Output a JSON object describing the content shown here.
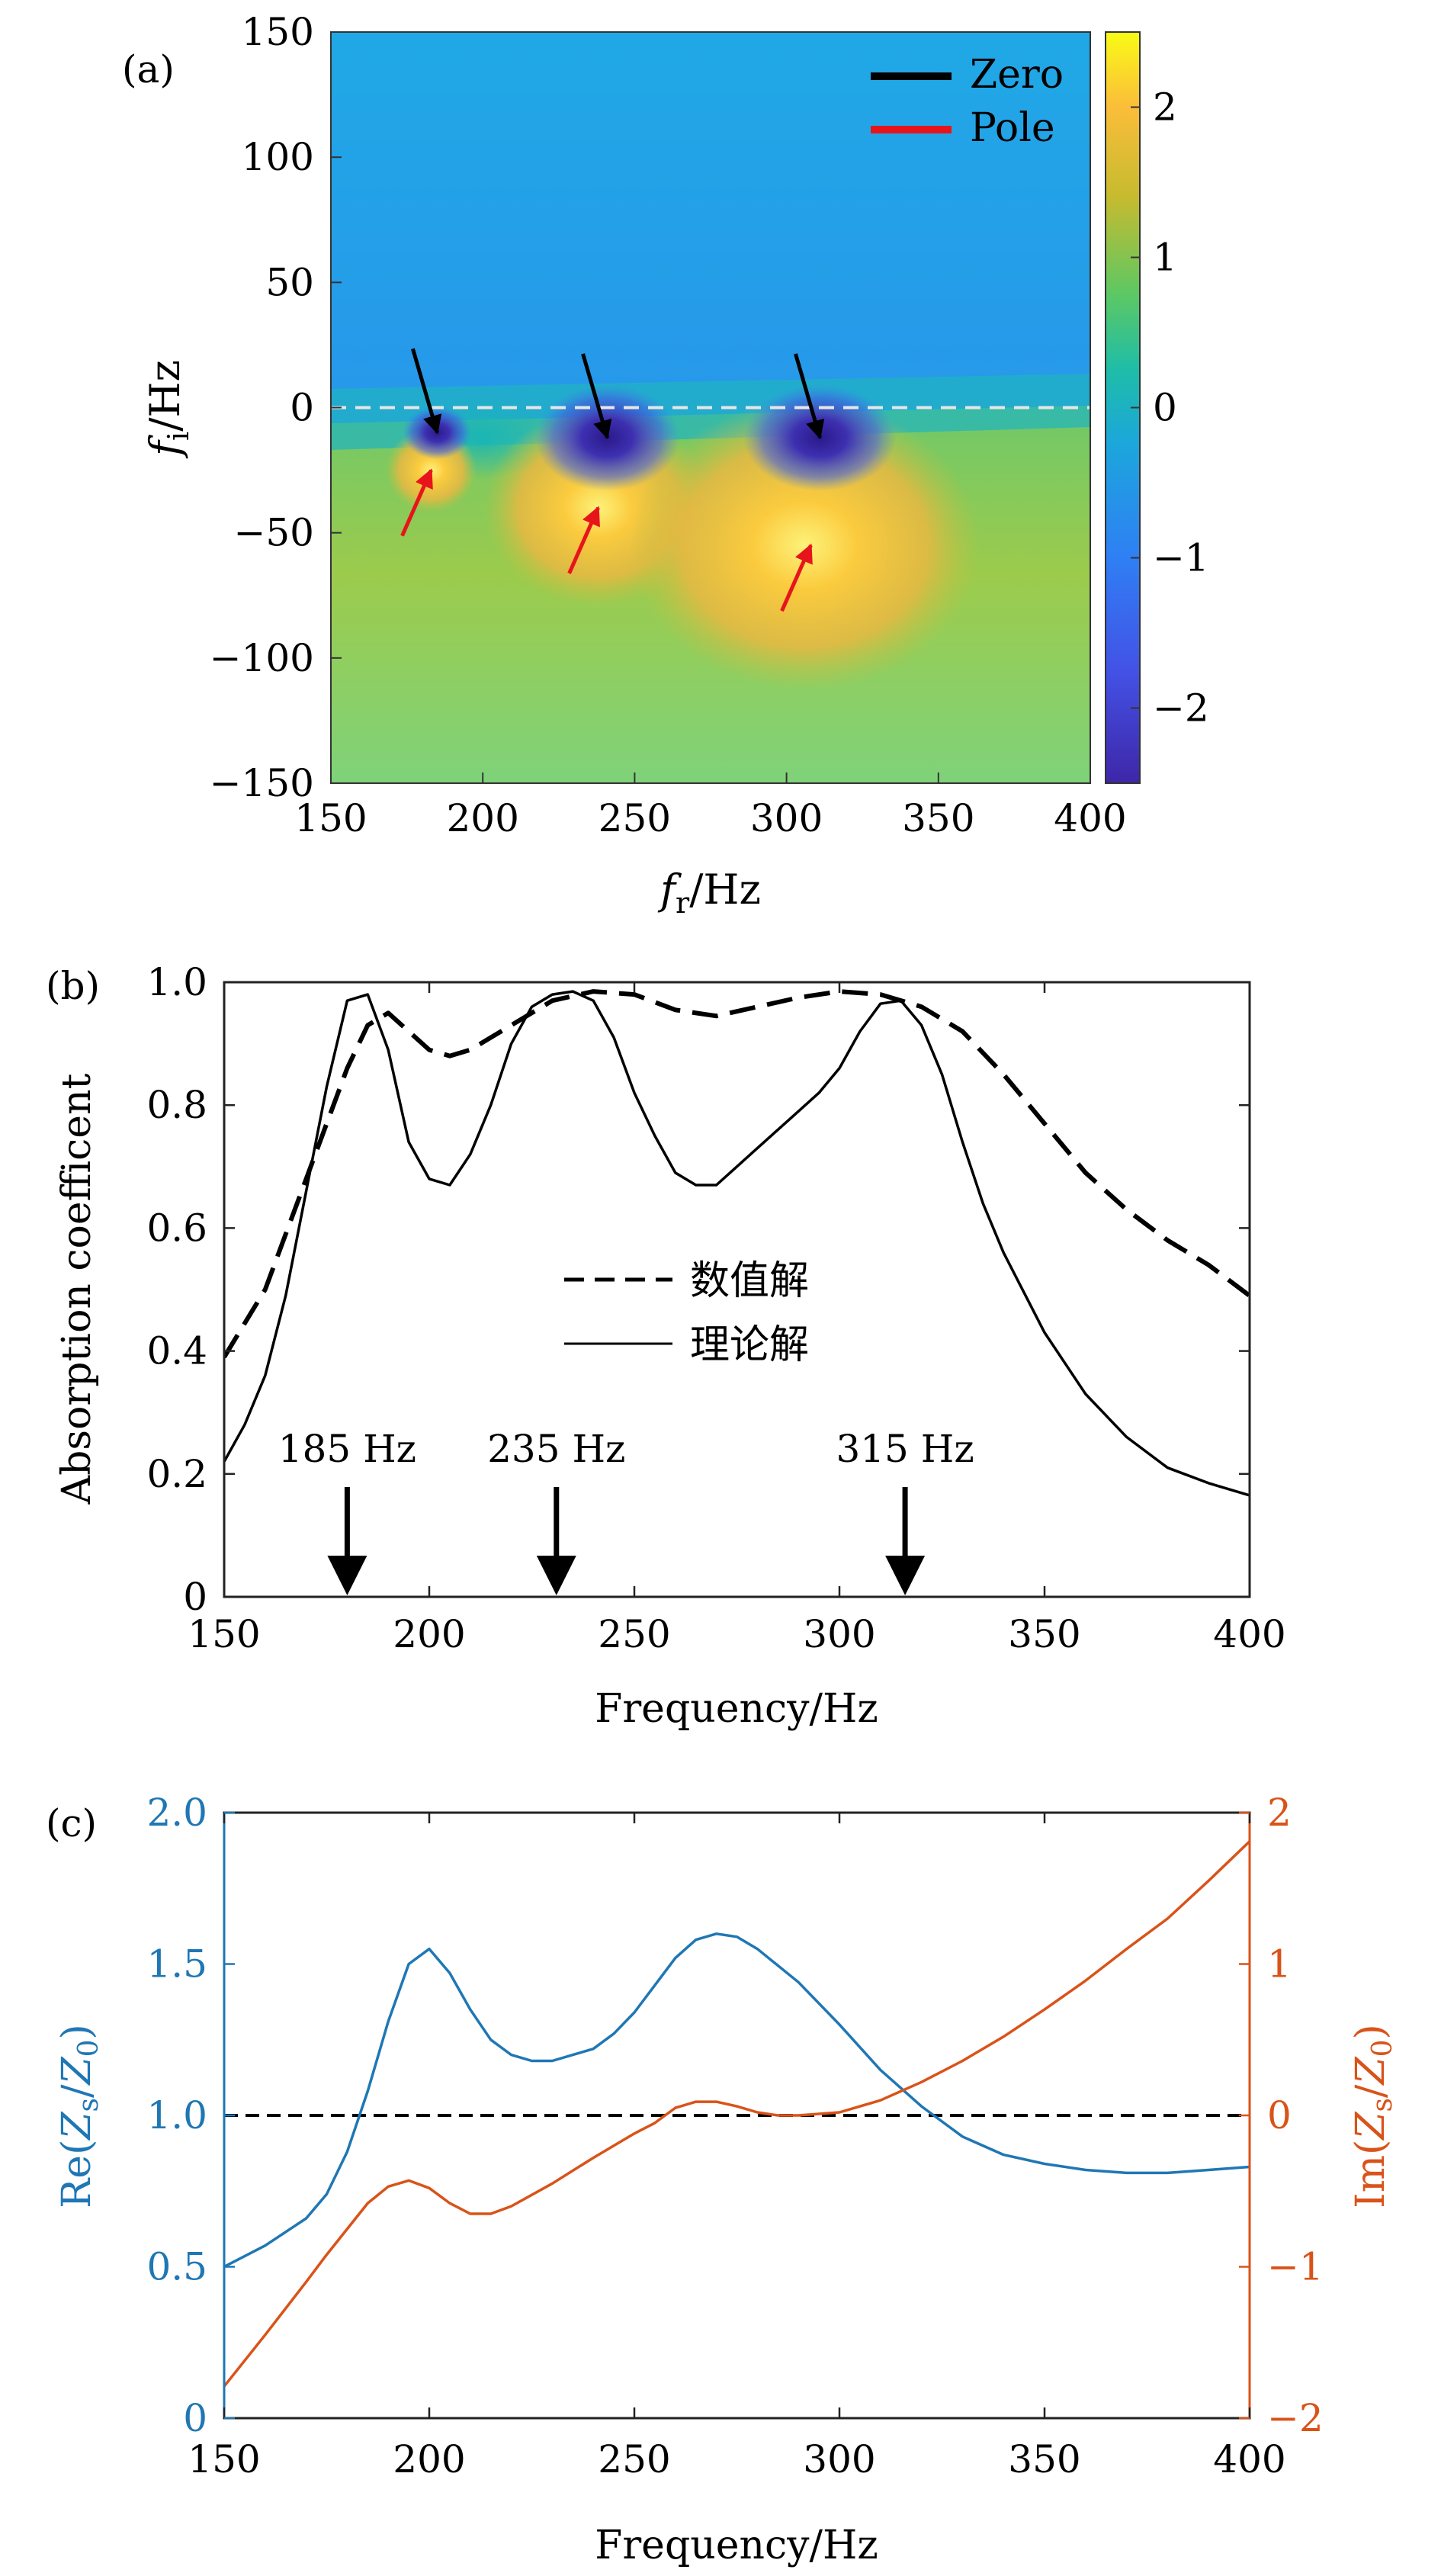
{
  "chart_data": [
    {
      "type": "heatmap",
      "panel_label": "(a)",
      "xlabel": "f_r/Hz",
      "ylabel": "f_i/Hz",
      "xlim": [
        150,
        400
      ],
      "ylim": [
        -150,
        150
      ],
      "x_ticks": [
        150,
        200,
        250,
        300,
        350,
        400
      ],
      "y_ticks": [
        150,
        100,
        50,
        0,
        -50,
        -100,
        -150
      ],
      "y_tick_labels": [
        "150",
        "100",
        "50",
        "0",
        "−50",
        "−100",
        "−150"
      ],
      "colorbar": {
        "range": [
          -2.5,
          2.5
        ],
        "ticks": [
          2,
          1,
          0,
          -1,
          -2
        ],
        "tick_labels": [
          "2",
          "1",
          "0",
          "−1",
          "−2"
        ],
        "colormap": "parula"
      },
      "reference_line": {
        "y": 0,
        "style": "dashed",
        "color": "#dddddd"
      },
      "legend": [
        {
          "label": "Zero",
          "color": "#000000"
        },
        {
          "label": "Pole",
          "color": "#e8141c"
        }
      ],
      "legend_position": "top-right",
      "zeros": [
        {
          "fr": 185,
          "fi": -10
        },
        {
          "fr": 241,
          "fi": -12
        },
        {
          "fr": 311,
          "fi": -12
        }
      ],
      "poles": [
        {
          "fr": 183,
          "fi": -25
        },
        {
          "fr": 238,
          "fi": -40
        },
        {
          "fr": 308,
          "fi": -55
        }
      ],
      "zero_color": "#000000",
      "pole_color": "#e8141c"
    },
    {
      "type": "line",
      "panel_label": "(b)",
      "xlabel": "Frequency/Hz",
      "ylabel": "Absorption coefficent",
      "xlim": [
        150,
        400
      ],
      "ylim": [
        0,
        1.0
      ],
      "x_ticks": [
        150,
        200,
        250,
        300,
        350,
        400
      ],
      "y_ticks": [
        0,
        0.2,
        0.4,
        0.6,
        0.8,
        1.0
      ],
      "y_tick_labels": [
        "0",
        "0.2",
        "0.4",
        "0.6",
        "0.8",
        "1.0"
      ],
      "legend_position": "center",
      "series": [
        {
          "name": "数值解",
          "style": "dashed",
          "color": "#000000",
          "x": [
            150,
            160,
            170,
            180,
            185,
            190,
            195,
            200,
            205,
            210,
            220,
            230,
            240,
            250,
            260,
            270,
            280,
            290,
            300,
            310,
            320,
            330,
            340,
            350,
            360,
            370,
            380,
            390,
            400
          ],
          "y": [
            0.39,
            0.5,
            0.68,
            0.86,
            0.93,
            0.95,
            0.92,
            0.89,
            0.88,
            0.89,
            0.93,
            0.97,
            0.985,
            0.98,
            0.955,
            0.945,
            0.96,
            0.975,
            0.985,
            0.98,
            0.96,
            0.92,
            0.85,
            0.77,
            0.69,
            0.63,
            0.58,
            0.54,
            0.49
          ]
        },
        {
          "name": "理论解",
          "style": "solid",
          "color": "#000000",
          "x": [
            150,
            155,
            160,
            165,
            170,
            175,
            180,
            185,
            190,
            195,
            200,
            205,
            210,
            215,
            220,
            225,
            230,
            235,
            240,
            245,
            250,
            255,
            260,
            265,
            270,
            275,
            280,
            285,
            290,
            295,
            300,
            305,
            310,
            315,
            320,
            325,
            330,
            335,
            340,
            350,
            360,
            370,
            380,
            390,
            400
          ],
          "y": [
            0.22,
            0.28,
            0.36,
            0.49,
            0.66,
            0.83,
            0.97,
            0.98,
            0.89,
            0.74,
            0.68,
            0.67,
            0.72,
            0.8,
            0.9,
            0.96,
            0.98,
            0.985,
            0.97,
            0.91,
            0.82,
            0.75,
            0.69,
            0.67,
            0.67,
            0.7,
            0.73,
            0.76,
            0.79,
            0.82,
            0.86,
            0.92,
            0.965,
            0.97,
            0.93,
            0.85,
            0.74,
            0.64,
            0.56,
            0.43,
            0.33,
            0.26,
            0.21,
            0.185,
            0.165
          ]
        }
      ],
      "annotations": [
        {
          "label": "185 Hz",
          "x": 180
        },
        {
          "label": "235 Hz",
          "x": 231
        },
        {
          "label": "315 Hz",
          "x": 316
        }
      ]
    },
    {
      "type": "line",
      "panel_label": "(c)",
      "xlabel": "Frequency/Hz",
      "ylabel_left": "Re(Z_s/Z_0)",
      "ylabel_right": "Im(Z_s/Z_0)",
      "xlim": [
        150,
        400
      ],
      "ylim_left": [
        0,
        2.0
      ],
      "ylim_right": [
        -2,
        2
      ],
      "x_ticks": [
        150,
        200,
        250,
        300,
        350,
        400
      ],
      "y_ticks_left": [
        0,
        0.5,
        1.0,
        1.5,
        2.0
      ],
      "y_tick_labels_left": [
        "0",
        "0.5",
        "1.0",
        "1.5",
        "2.0"
      ],
      "y_ticks_right": [
        -2,
        -1,
        0,
        1,
        2
      ],
      "y_tick_labels_right": [
        "−2",
        "−1",
        "0",
        "1",
        "2"
      ],
      "left_color": "#1f77b4",
      "right_color": "#d95319",
      "reference_line": {
        "y": 1.0,
        "style": "dashed",
        "color": "#000000"
      },
      "series": [
        {
          "axis": "left",
          "color": "#1f77b4",
          "x": [
            150,
            160,
            170,
            175,
            180,
            185,
            190,
            195,
            200,
            205,
            210,
            215,
            220,
            225,
            230,
            235,
            240,
            245,
            250,
            255,
            260,
            265,
            270,
            275,
            280,
            290,
            300,
            310,
            320,
            330,
            340,
            350,
            360,
            370,
            380,
            390,
            400
          ],
          "y": [
            0.5,
            0.57,
            0.66,
            0.74,
            0.88,
            1.08,
            1.31,
            1.5,
            1.55,
            1.47,
            1.35,
            1.25,
            1.2,
            1.18,
            1.18,
            1.2,
            1.22,
            1.27,
            1.34,
            1.43,
            1.52,
            1.58,
            1.6,
            1.59,
            1.55,
            1.44,
            1.3,
            1.15,
            1.03,
            0.93,
            0.87,
            0.84,
            0.82,
            0.81,
            0.81,
            0.82,
            0.83
          ]
        },
        {
          "axis": "right",
          "color": "#d95319",
          "x": [
            150,
            160,
            170,
            175,
            180,
            185,
            190,
            195,
            200,
            205,
            210,
            215,
            220,
            230,
            240,
            250,
            255,
            260,
            265,
            270,
            275,
            280,
            285,
            290,
            300,
            310,
            320,
            330,
            340,
            350,
            360,
            370,
            380,
            390,
            400
          ],
          "y": [
            -1.79,
            -1.45,
            -1.1,
            -0.92,
            -0.75,
            -0.58,
            -0.47,
            -0.43,
            -0.48,
            -0.58,
            -0.65,
            -0.65,
            -0.6,
            -0.45,
            -0.28,
            -0.12,
            -0.05,
            0.05,
            0.09,
            0.09,
            0.06,
            0.02,
            0.0,
            0.0,
            0.02,
            0.1,
            0.22,
            0.36,
            0.52,
            0.7,
            0.89,
            1.1,
            1.3,
            1.55,
            1.81
          ]
        }
      ]
    }
  ]
}
